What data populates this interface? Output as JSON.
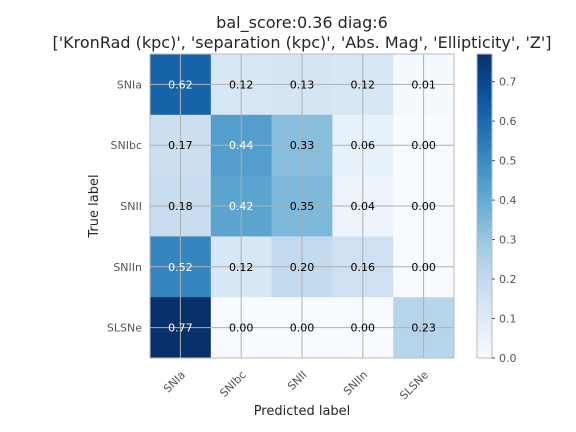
{
  "chart_data": {
    "type": "heatmap",
    "title_line1": "bal_score:0.36 diag:6",
    "title_line2": "['KronRad (kpc)', 'separation (kpc)', 'Abs. Mag', 'Ellipticity', 'Z']",
    "xlabel": "Predicted label",
    "ylabel": "True label",
    "x_categories": [
      "SNIa",
      "SNIbc",
      "SNII",
      "SNIIn",
      "SLSNe"
    ],
    "y_categories": [
      "SNIa",
      "SNIbc",
      "SNII",
      "SNIIn",
      "SLSNe"
    ],
    "values": [
      [
        0.62,
        0.12,
        0.13,
        0.12,
        0.01
      ],
      [
        0.17,
        0.44,
        0.33,
        0.06,
        0.0
      ],
      [
        0.18,
        0.42,
        0.35,
        0.04,
        0.0
      ],
      [
        0.52,
        0.12,
        0.2,
        0.16,
        0.0
      ],
      [
        0.77,
        0.0,
        0.0,
        0.0,
        0.23
      ]
    ],
    "colormap": "Blues",
    "vmin": 0.0,
    "vmax": 0.77,
    "colorbar_ticks": [
      "0.0",
      "0.1",
      "0.2",
      "0.3",
      "0.4",
      "0.5",
      "0.6",
      "0.7"
    ],
    "grid": true
  }
}
